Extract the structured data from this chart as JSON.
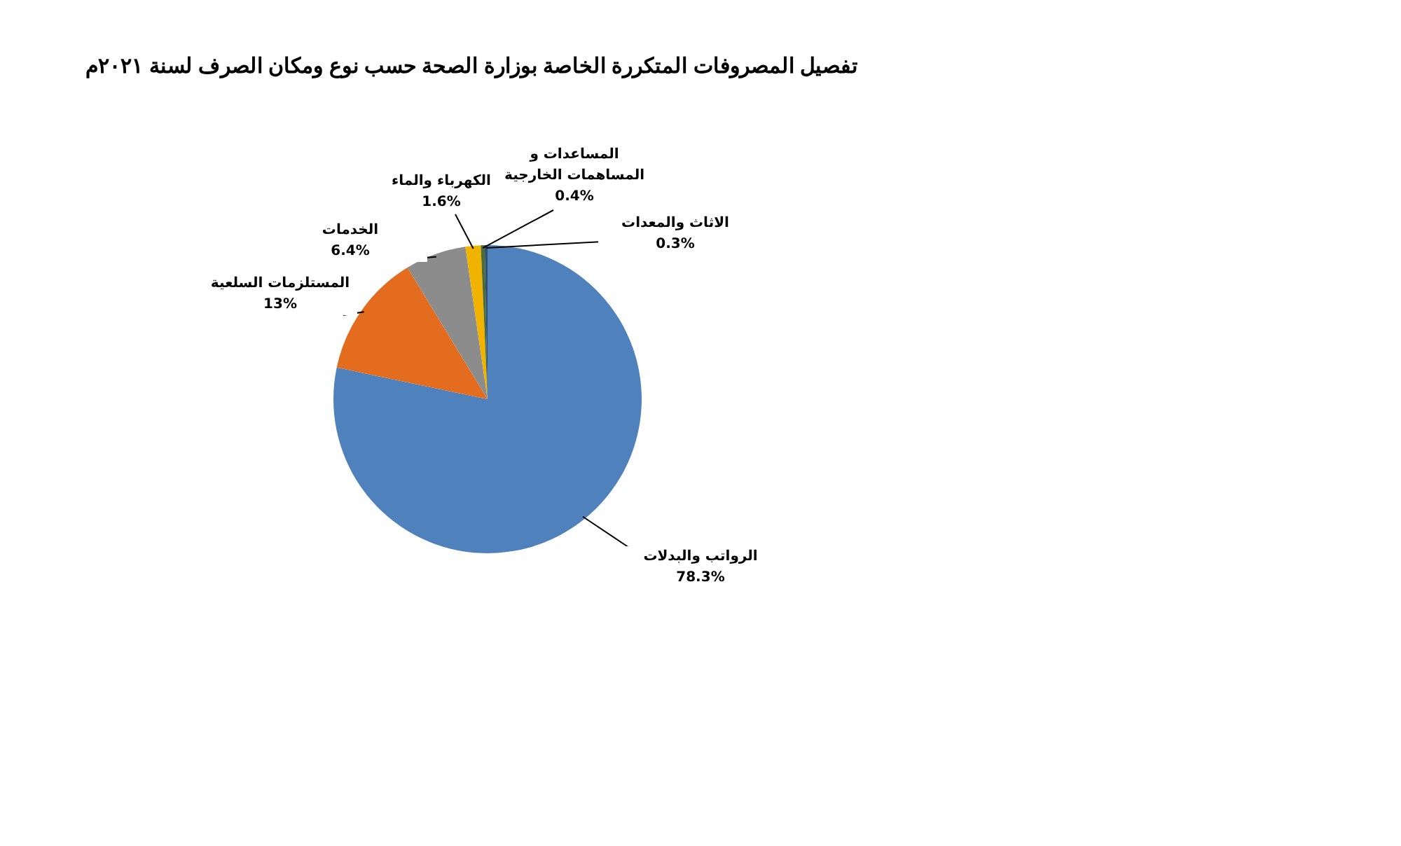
{
  "chart_data": {
    "type": "pie",
    "title": "تفصيل المصروفات المتكررة الخاصة بوزارة الصحة حسب نوع ومكان الصرف  لسنة ٢٠٢١م",
    "categories": [
      "الرواتب والبدلات",
      "المستلزمات السلعية",
      "الخدمات",
      "الكهرباء والماء",
      "المساعدات و المساهمات الخارجية",
      "الاثاث والمعدات"
    ],
    "values": [
      78.3,
      13,
      6.4,
      1.6,
      0.4,
      0.3
    ],
    "value_labels": [
      "78.3%",
      "13%",
      "6.4%",
      "1.6%",
      "0.4%",
      "0.3%"
    ],
    "colors": [
      "#4f81bd",
      "#e36c1f",
      "#8c8c8c",
      "#f0b400",
      "#4b6b3a",
      "#2f4f6f"
    ]
  }
}
